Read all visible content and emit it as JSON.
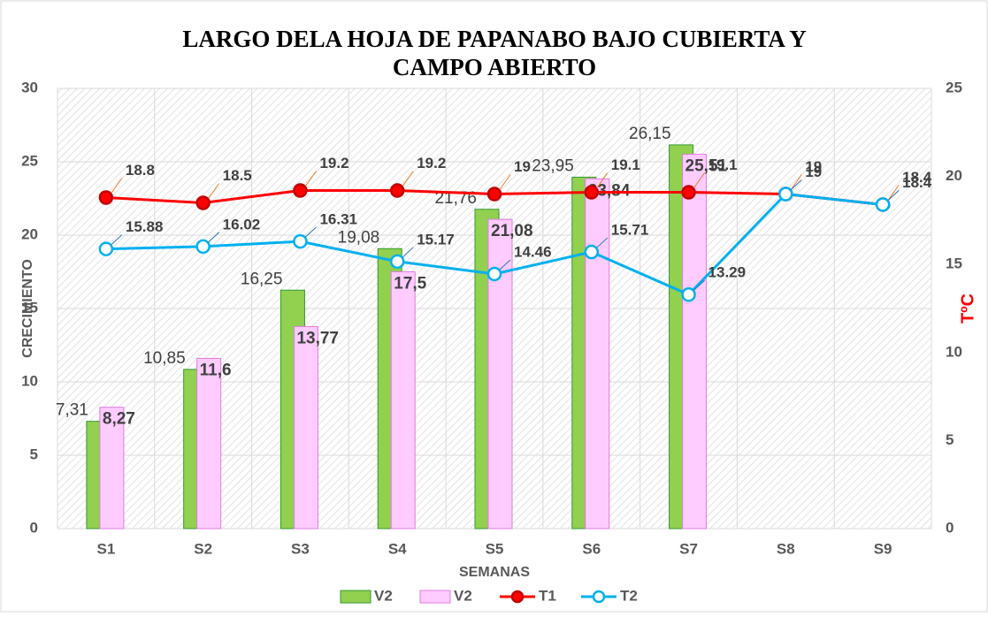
{
  "chart_data": {
    "type": "bar-line",
    "title": [
      "LARGO  DELA HOJA  DE PAPANABO BAJO CUBIERTA Y",
      "CAMPO ABIERTO"
    ],
    "x_label": "SEMANAS",
    "y_label": "CRECIMIENTO",
    "y2_label": "TºC",
    "categories": [
      "S1",
      "S2",
      "S3",
      "S4",
      "S5",
      "S6",
      "S7",
      "S8",
      "S9"
    ],
    "ylim": [
      0,
      30
    ],
    "yticks": [
      0,
      5,
      10,
      15,
      20,
      25,
      30
    ],
    "y2lim": [
      0,
      25
    ],
    "y2ticks": [
      0,
      5,
      10,
      15,
      20,
      25
    ],
    "grid": true,
    "legend": "bottom",
    "series": [
      {
        "name": "V2",
        "type": "bar",
        "color": "#92d050",
        "values": [
          7.31,
          10.85,
          16.25,
          19.08,
          21.76,
          23.95,
          26.15,
          null,
          null
        ],
        "value_labels": [
          "7,31",
          "10,85",
          "16,25",
          "19,08",
          "21,76",
          "23,95",
          "26,15",
          null,
          null
        ]
      },
      {
        "name": "V2",
        "type": "bar",
        "color": "#ffccff",
        "values": [
          8.27,
          11.6,
          13.77,
          17.5,
          21.08,
          23.84,
          25.51,
          null,
          null
        ],
        "value_labels": [
          "8,27",
          "11,6",
          "13,77",
          "17,5",
          "21,08",
          "23,84",
          "25,51",
          null,
          null
        ]
      },
      {
        "name": "T1",
        "type": "line",
        "axis": "y2",
        "color": "#ff0000",
        "values": [
          18.8,
          18.5,
          19.2,
          19.2,
          19,
          19.1,
          19.1,
          19,
          18.4
        ]
      },
      {
        "name": "T2",
        "type": "line",
        "axis": "y2",
        "color": "#00b0f0",
        "values": [
          15.88,
          16.02,
          16.31,
          15.17,
          14.46,
          15.71,
          13.29,
          19,
          18.4
        ]
      }
    ]
  }
}
